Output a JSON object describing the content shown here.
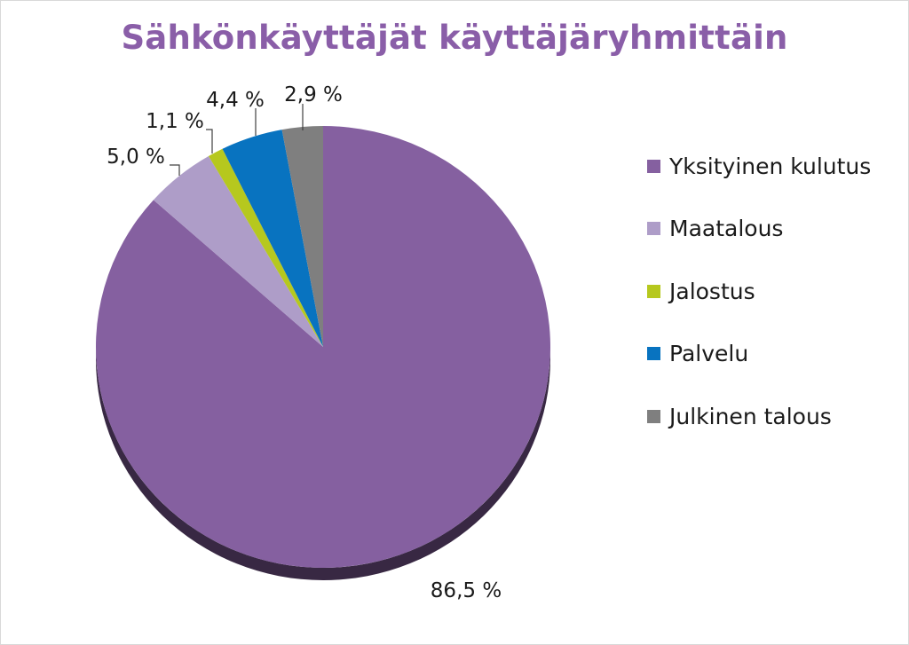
{
  "chart_data": {
    "type": "pie",
    "title": "Sähkönkäyttäjät käyttäjäryhmittäin",
    "slices": [
      {
        "label": "Yksityinen kulutus",
        "value": 86.5,
        "value_label": "86,5 %",
        "color": "#8560a0"
      },
      {
        "label": "Maatalous",
        "value": 5.0,
        "value_label": "5,0 %",
        "color": "#ae9dc8"
      },
      {
        "label": "Jalostus",
        "value": 1.1,
        "value_label": "1,1 %",
        "color": "#b6c81e"
      },
      {
        "label": "Palvelu",
        "value": 4.4,
        "value_label": "4,4 %",
        "color": "#0873c0"
      },
      {
        "label": "Julkinen talous",
        "value": 2.9,
        "value_label": "2,9 %",
        "color": "#7f7f7f"
      }
    ],
    "legend_position": "right",
    "style": "3d"
  }
}
